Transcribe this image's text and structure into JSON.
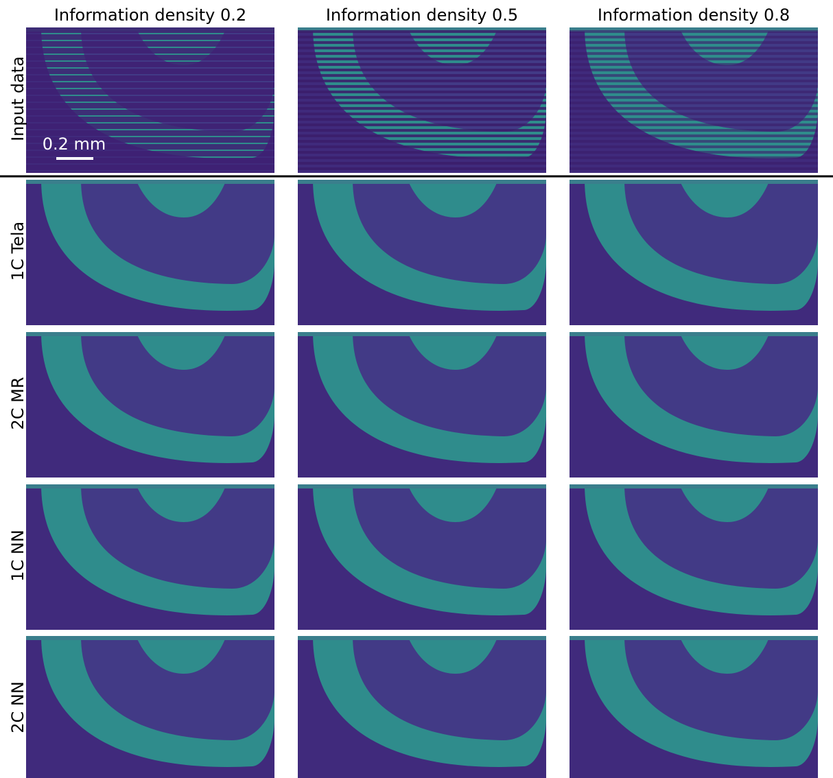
{
  "columns": [
    "Information density 0.2",
    "Information density 0.5",
    "Information density 0.8"
  ],
  "rows": [
    "Input data",
    "1C Tela",
    "2C MR",
    "1C NN",
    "2C NN"
  ],
  "scale_bar": "0.2 mm"
}
